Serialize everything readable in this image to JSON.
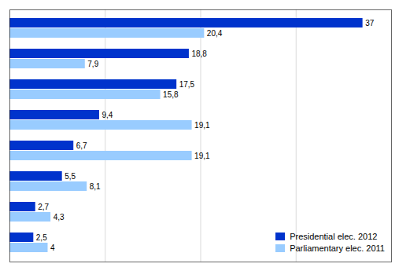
{
  "chart_data": {
    "type": "bar",
    "orientation": "horizontal",
    "categories": [
      null,
      null,
      null,
      null,
      null,
      null,
      null,
      null
    ],
    "series": [
      {
        "name": "Presidential elec. 2012",
        "color": "#0033cc",
        "values": [
          37.0,
          18.8,
          17.5,
          9.4,
          6.7,
          5.5,
          2.7,
          2.5
        ],
        "value_labels": [
          "37",
          "18,8",
          "17,5",
          "9,4",
          "6,7",
          "5,5",
          "2,7",
          "2,5"
        ]
      },
      {
        "name": "Parliamentary elec. 2011",
        "color": "#99ccff",
        "values": [
          20.4,
          7.9,
          15.8,
          19.1,
          19.1,
          8.1,
          4.3,
          4.0
        ],
        "value_labels": [
          "20,4",
          "7,9",
          "15,8",
          "19,1",
          "19,1",
          "8,1",
          "4,3",
          "4"
        ]
      }
    ],
    "xlim": [
      0,
      40
    ],
    "xticks": [
      10,
      20,
      30
    ],
    "grid": true,
    "tick_labels": false,
    "data_labels": true,
    "legend": "lower right"
  }
}
